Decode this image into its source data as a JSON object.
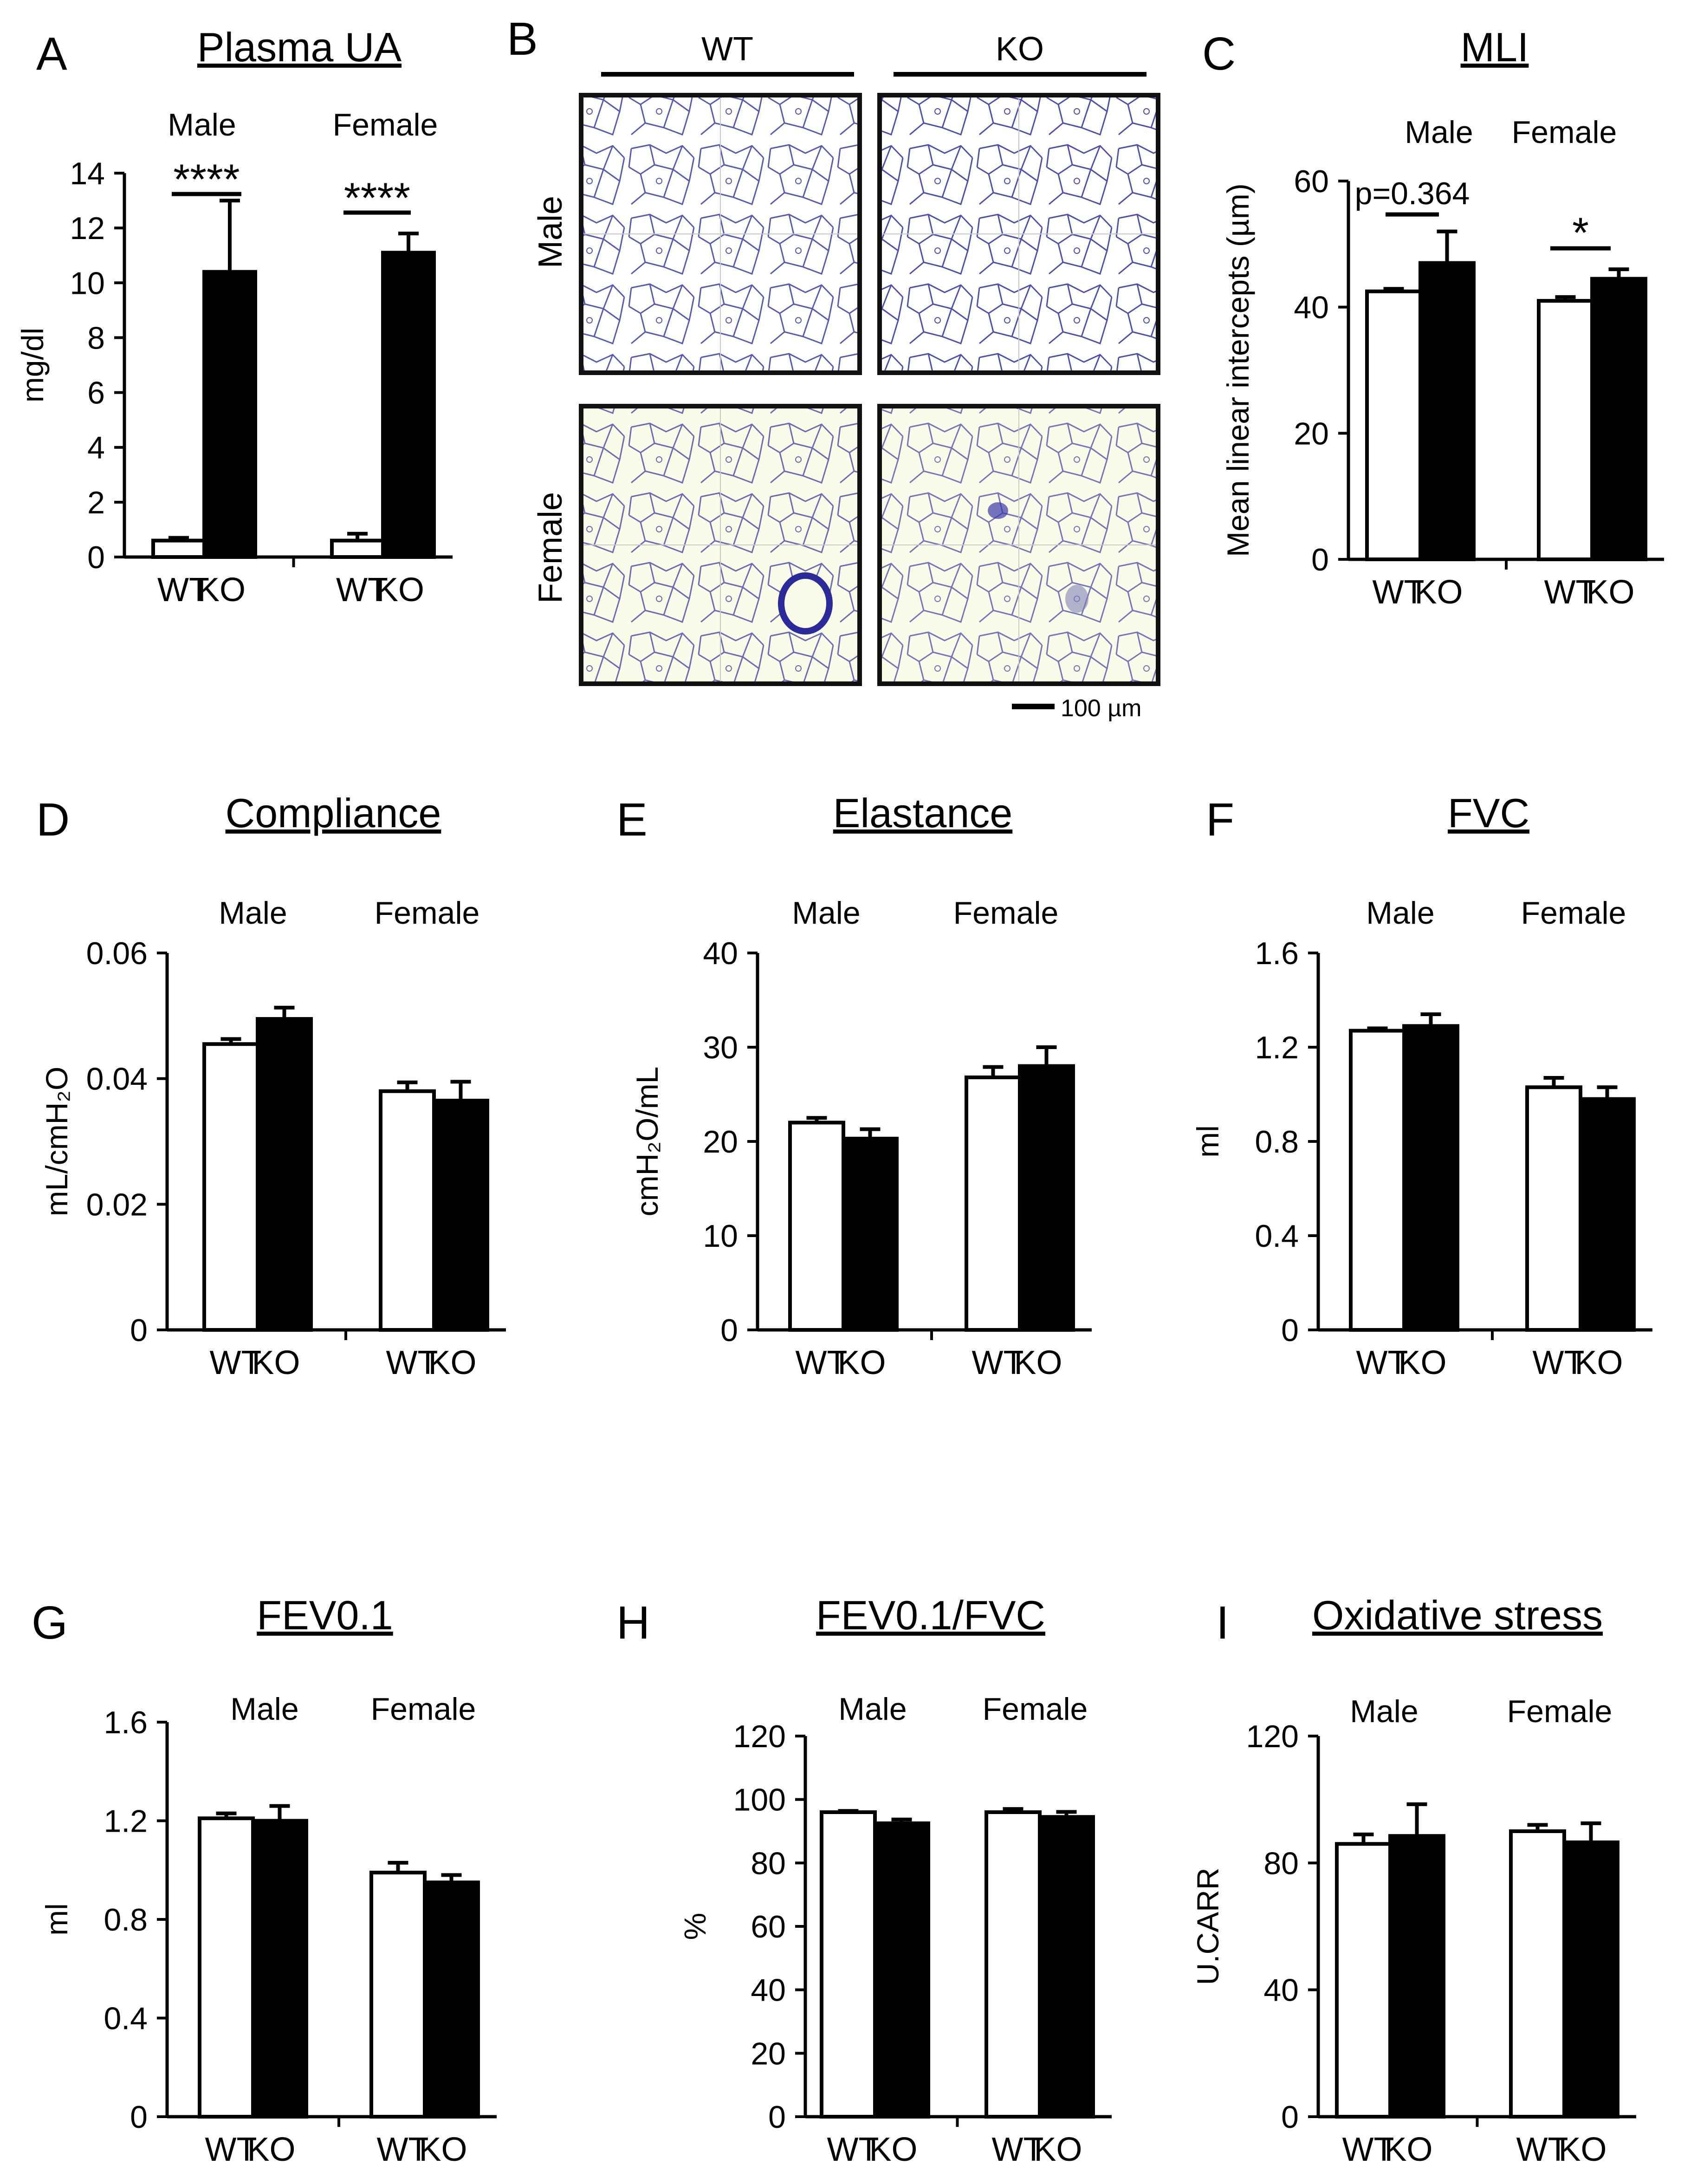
{
  "panels": {
    "A": {
      "letter": "A"
    },
    "B": {
      "letter": "B",
      "col_wt": "WT",
      "col_ko": "KO",
      "row_male": "Male",
      "row_female": "Female",
      "scale_bar": "100 µm"
    },
    "C": {
      "letter": "C"
    },
    "D": {
      "letter": "D"
    },
    "E": {
      "letter": "E"
    },
    "F": {
      "letter": "F"
    },
    "G": {
      "letter": "G"
    },
    "H": {
      "letter": "H"
    },
    "I": {
      "letter": "I"
    }
  },
  "colors": {
    "wt_fill": "#ffffff",
    "ko_fill": "#000000",
    "axis": "#000000",
    "tissue_bg_male": "#ffffff",
    "tissue_bg_female": "#fbfbe9",
    "tissue_stain": "#3a3aa8"
  },
  "chart_data": [
    {
      "id": "A",
      "type": "bar",
      "title": "Plasma UA",
      "ylabel": "mg/dl",
      "ylim": [
        0,
        14
      ],
      "yticks": [
        "0",
        "2",
        "4",
        "6",
        "8",
        "10",
        "12",
        "14"
      ],
      "groups": [
        "Male",
        "Female"
      ],
      "categories": [
        "WT",
        "KO"
      ],
      "series": [
        {
          "name": "WT",
          "values": [
            0.6,
            0.6
          ],
          "errors": [
            0.1,
            0.25
          ]
        },
        {
          "name": "KO",
          "values": [
            10.4,
            11.1
          ],
          "errors": [
            2.6,
            0.7
          ]
        }
      ],
      "annotations": [
        "****",
        "****"
      ]
    },
    {
      "id": "C",
      "type": "bar",
      "title": "MLI",
      "ylabel": "Mean linear intercepts (µm)",
      "ylim": [
        0,
        60
      ],
      "yticks": [
        "0",
        "20",
        "40",
        "60"
      ],
      "groups": [
        "Male",
        "Female"
      ],
      "categories": [
        "WT",
        "KO"
      ],
      "series": [
        {
          "name": "WT",
          "values": [
            42.5,
            41.0
          ],
          "errors": [
            0.4,
            0.6
          ]
        },
        {
          "name": "KO",
          "values": [
            47.0,
            44.5
          ],
          "errors": [
            5.0,
            1.5
          ]
        }
      ],
      "annotations": [
        "p=0.364",
        "*"
      ]
    },
    {
      "id": "D",
      "type": "bar",
      "title": "Compliance",
      "ylabel": "mL/cmH₂O",
      "ylim": [
        0,
        0.06
      ],
      "yticks": [
        "0",
        "0.02",
        "0.04",
        "0.06"
      ],
      "groups": [
        "Male",
        "Female"
      ],
      "categories": [
        "WT",
        "KO"
      ],
      "series": [
        {
          "name": "WT",
          "values": [
            0.0455,
            0.038
          ],
          "errors": [
            0.0008,
            0.0014
          ]
        },
        {
          "name": "KO",
          "values": [
            0.0495,
            0.0365
          ],
          "errors": [
            0.0018,
            0.003
          ]
        }
      ],
      "annotations": []
    },
    {
      "id": "E",
      "type": "bar",
      "title": "Elastance",
      "ylabel": "cmH₂O/mL",
      "ylim": [
        0,
        40
      ],
      "yticks": [
        "0",
        "10",
        "20",
        "30",
        "40"
      ],
      "groups": [
        "Male",
        "Female"
      ],
      "categories": [
        "WT",
        "KO"
      ],
      "series": [
        {
          "name": "WT",
          "values": [
            22.0,
            26.8
          ],
          "errors": [
            0.5,
            1.1
          ]
        },
        {
          "name": "KO",
          "values": [
            20.3,
            28.0
          ],
          "errors": [
            1.0,
            2.0
          ]
        }
      ],
      "annotations": []
    },
    {
      "id": "F",
      "type": "bar",
      "title": "FVC",
      "ylabel": "ml",
      "ylim": [
        0,
        1.6
      ],
      "yticks": [
        "0",
        "0.4",
        "0.8",
        "1.2",
        "1.6"
      ],
      "groups": [
        "Male",
        "Female"
      ],
      "categories": [
        "WT",
        "KO"
      ],
      "series": [
        {
          "name": "WT",
          "values": [
            1.27,
            1.03
          ],
          "errors": [
            0.01,
            0.04
          ]
        },
        {
          "name": "KO",
          "values": [
            1.29,
            0.98
          ],
          "errors": [
            0.05,
            0.05
          ]
        }
      ],
      "annotations": []
    },
    {
      "id": "G",
      "type": "bar",
      "title": "FEV0.1",
      "ylabel": "ml",
      "ylim": [
        0,
        1.6
      ],
      "yticks": [
        "0",
        "0.4",
        "0.8",
        "1.2",
        "1.6"
      ],
      "groups": [
        "Male",
        "Female"
      ],
      "categories": [
        "WT",
        "KO"
      ],
      "series": [
        {
          "name": "WT",
          "values": [
            1.21,
            0.99
          ],
          "errors": [
            0.02,
            0.04
          ]
        },
        {
          "name": "KO",
          "values": [
            1.2,
            0.95
          ],
          "errors": [
            0.06,
            0.03
          ]
        }
      ],
      "annotations": []
    },
    {
      "id": "H",
      "type": "bar",
      "title": "FEV0.1/FVC",
      "ylabel": "%",
      "ylim": [
        0,
        120
      ],
      "yticks": [
        "0",
        "20",
        "40",
        "60",
        "80",
        "100",
        "120"
      ],
      "groups": [
        "Male",
        "Female"
      ],
      "categories": [
        "WT",
        "KO"
      ],
      "series": [
        {
          "name": "WT",
          "values": [
            96.0,
            96.0
          ],
          "errors": [
            0.4,
            1.0
          ]
        },
        {
          "name": "KO",
          "values": [
            92.5,
            94.5
          ],
          "errors": [
            1.2,
            1.6
          ]
        }
      ],
      "annotations": []
    },
    {
      "id": "I",
      "type": "bar",
      "title": "Oxidative stress",
      "ylabel": "U.CARR",
      "ylim": [
        0,
        120
      ],
      "yticks": [
        "0",
        "40",
        "80",
        "120"
      ],
      "groups": [
        "Male",
        "Female"
      ],
      "categories": [
        "WT",
        "KO"
      ],
      "series": [
        {
          "name": "WT",
          "values": [
            86.0,
            90.0
          ],
          "errors": [
            3.0,
            2.0
          ]
        },
        {
          "name": "KO",
          "values": [
            88.5,
            86.5
          ],
          "errors": [
            10.0,
            6.0
          ]
        }
      ],
      "annotations": []
    }
  ]
}
